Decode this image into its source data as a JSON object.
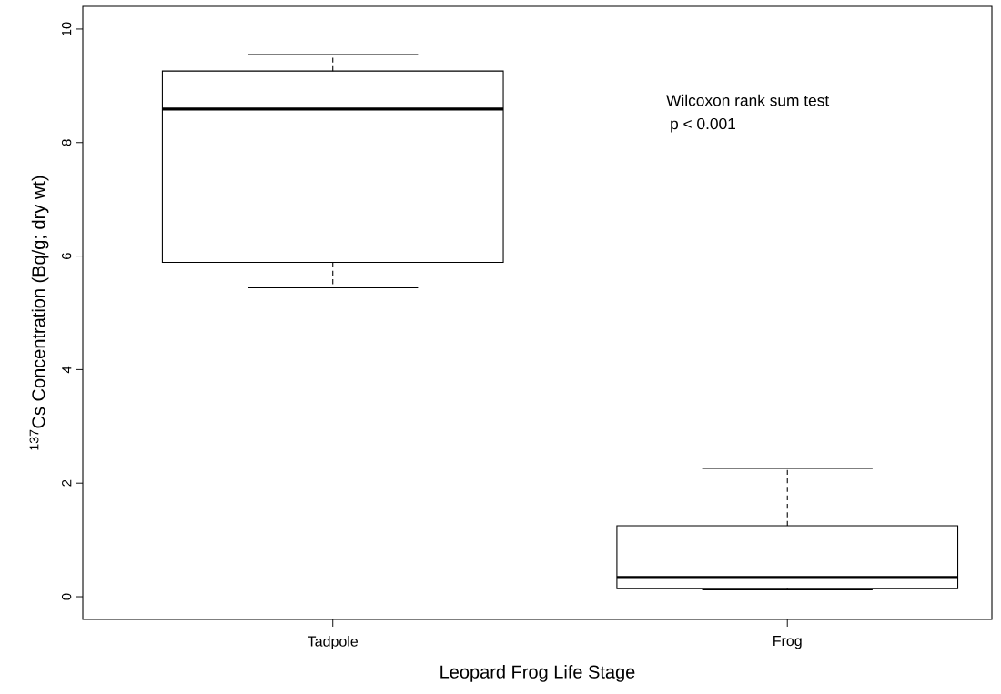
{
  "chart_data": {
    "type": "box",
    "xlabel": "Leopard Frog Life Stage",
    "ylabel": "$^{137}$Cs Concentration (Bq/g; dry wt)",
    "categories": [
      "Tadpole",
      "Frog"
    ],
    "boxes": [
      {
        "low": 5.44,
        "q1": 5.89,
        "median": 8.59,
        "q3": 9.26,
        "high": 9.55
      },
      {
        "low": 0.12,
        "q1": 0.14,
        "median": 0.34,
        "q3": 1.25,
        "high": 2.26
      }
    ],
    "ylim": [
      -0.4,
      10.4
    ],
    "yticks": [
      0,
      2,
      4,
      6,
      8,
      10
    ],
    "annotations": [
      "Wilcoxon rank sum test",
      "p < 0.001"
    ]
  }
}
